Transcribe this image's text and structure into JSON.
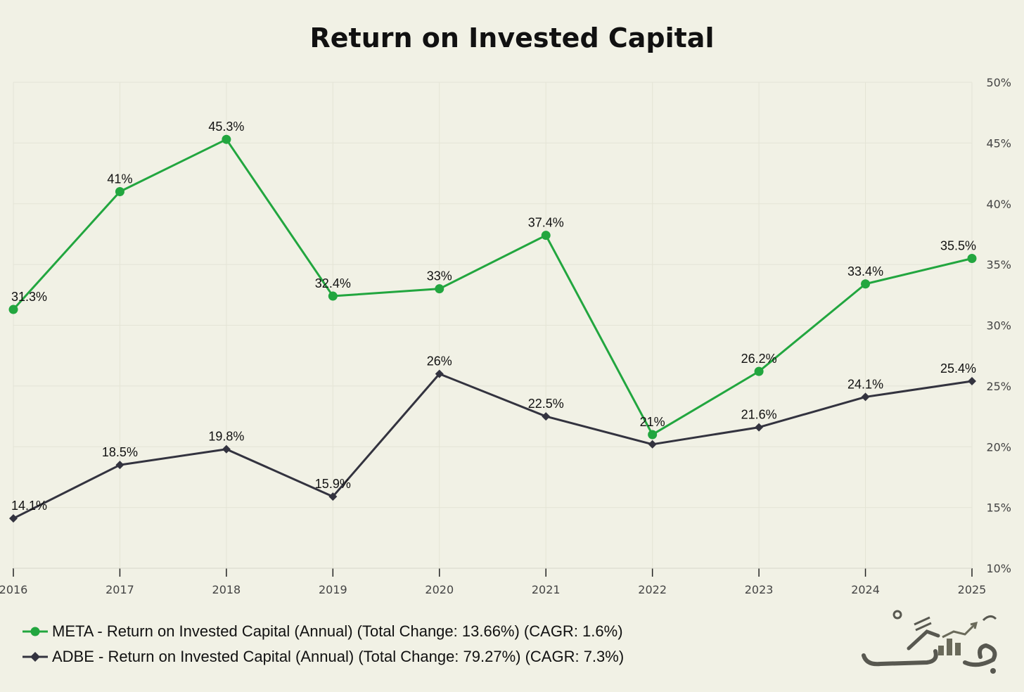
{
  "chart_data": {
    "type": "line",
    "title": "Return on Invested Capital",
    "categories": [
      "2016",
      "2017",
      "2018",
      "2019",
      "2020",
      "2021",
      "2022",
      "2023",
      "2024",
      "2025"
    ],
    "ylim": [
      10,
      50
    ],
    "yticks": [
      10,
      15,
      20,
      25,
      30,
      35,
      40,
      45,
      50
    ],
    "ytick_labels": [
      "10%",
      "15%",
      "20%",
      "25%",
      "30%",
      "35%",
      "40%",
      "45%",
      "50%"
    ],
    "y_axis_side": "right",
    "grid": true,
    "legend_position": "bottom-left",
    "series": [
      {
        "name": "META - Return on Invested Capital (Annual) (Total Change: 13.66%) (CAGR: 1.6%)",
        "values": [
          31.3,
          41,
          45.3,
          32.4,
          33,
          37.4,
          21,
          26.2,
          33.4,
          35.5
        ],
        "labels": [
          "31.3%",
          "41%",
          "45.3%",
          "32.4%",
          "33%",
          "37.4%",
          "21%",
          "26.2%",
          "33.4%",
          "35.5%"
        ],
        "color": "#22a63f",
        "marker": "circle"
      },
      {
        "name": "ADBE - Return on Invested Capital (Annual) (Total Change: 79.27%) (CAGR: 7.3%)",
        "values": [
          14.1,
          18.5,
          19.8,
          15.9,
          26,
          22.5,
          20.2,
          21.6,
          24.1,
          25.4
        ],
        "labels": [
          "14.1%",
          "18.5%",
          "19.8%",
          "15.9%",
          "26%",
          "22.5%",
          "",
          "21.6%",
          "24.1%",
          "25.4%"
        ],
        "color": "#33333f",
        "marker": "diamond"
      }
    ]
  },
  "logo": {
    "icon": "brand-logo-icon",
    "accent_color": "#6a6a5a"
  }
}
